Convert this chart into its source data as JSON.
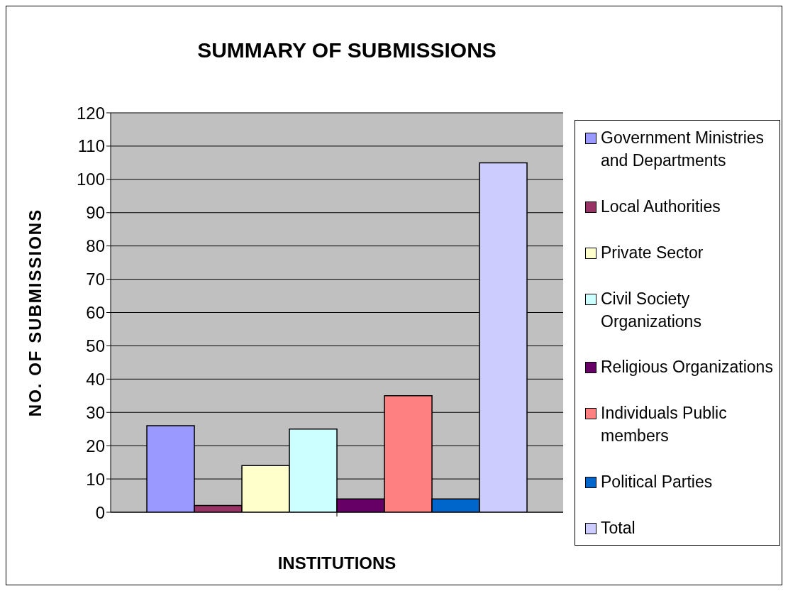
{
  "chart_data": {
    "type": "bar",
    "title": "SUMMARY OF SUBMISSIONS",
    "xlabel": "INSTITUTIONS",
    "ylabel": "NO. OF SUBMISSIONS",
    "categories": [
      null
    ],
    "series": [
      {
        "name": "Government Ministries and Departments",
        "color": "#9999ff",
        "values": [
          26
        ]
      },
      {
        "name": "Local Authorities",
        "color": "#993366",
        "values": [
          2
        ]
      },
      {
        "name": "Private Sector",
        "color": "#ffffcc",
        "values": [
          14
        ]
      },
      {
        "name": "Civil Society Organizations",
        "color": "#ccffff",
        "values": [
          25
        ]
      },
      {
        "name": "Religious Organizations",
        "color": "#660066",
        "values": [
          4
        ]
      },
      {
        "name": "Individuals Public members",
        "color": "#ff8080",
        "values": [
          35
        ]
      },
      {
        "name": "Political Parties",
        "color": "#0066cc",
        "values": [
          4
        ]
      },
      {
        "name": "Total",
        "color": "#ccccff",
        "values": [
          105
        ]
      }
    ],
    "ylim": [
      0,
      120
    ],
    "yticks": [
      0,
      10,
      20,
      30,
      40,
      50,
      60,
      70,
      80,
      90,
      100,
      110,
      120
    ],
    "grid": "y",
    "legend": "right"
  }
}
